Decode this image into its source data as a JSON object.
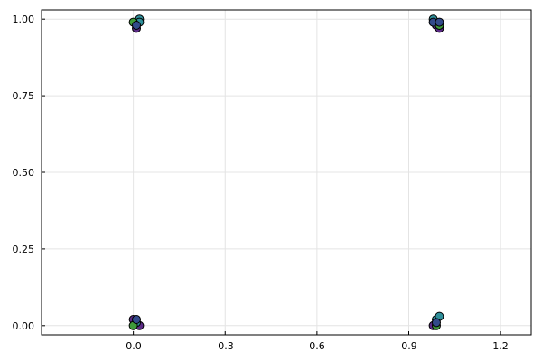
{
  "chart_data": {
    "type": "scatter",
    "title": "",
    "xlabel": "",
    "ylabel": "",
    "xlim": [
      -0.3,
      1.3
    ],
    "ylim": [
      -0.03,
      1.03
    ],
    "xticks": [
      "0.0",
      "0.3",
      "0.6",
      "0.9",
      "1.2"
    ],
    "yticks": [
      "0.00",
      "0.25",
      "0.50",
      "0.75",
      "1.00"
    ],
    "grid": true,
    "legend": "none",
    "colors": {
      "purple": "#5b2a86",
      "teal": "#2f8f9a",
      "green": "#3f9a3a",
      "darkblue": "#324a8a",
      "outline": "#000000",
      "frame": "#000000",
      "grid": "#e4e4e4"
    },
    "series": [
      {
        "color": "purple",
        "points": [
          [
            0.0,
            0.02
          ],
          [
            0.02,
            0.0
          ],
          [
            0.01,
            0.97
          ],
          [
            0.99,
            0.98
          ],
          [
            1.0,
            0.97
          ],
          [
            0.98,
            0.0
          ]
        ]
      },
      {
        "color": "teal",
        "points": [
          [
            0.02,
            1.0
          ],
          [
            0.02,
            0.99
          ],
          [
            0.99,
            0.02
          ],
          [
            1.0,
            0.03
          ],
          [
            0.98,
            1.0
          ],
          [
            0.01,
            0.01
          ]
        ]
      },
      {
        "color": "green",
        "points": [
          [
            0.0,
            0.0
          ],
          [
            0.0,
            0.99
          ],
          [
            1.0,
            0.98
          ],
          [
            0.99,
            0.0
          ]
        ]
      },
      {
        "color": "darkblue",
        "points": [
          [
            0.01,
            0.98
          ],
          [
            0.98,
            0.99
          ],
          [
            0.99,
            0.01
          ],
          [
            0.01,
            0.02
          ],
          [
            1.0,
            0.99
          ]
        ]
      }
    ]
  }
}
